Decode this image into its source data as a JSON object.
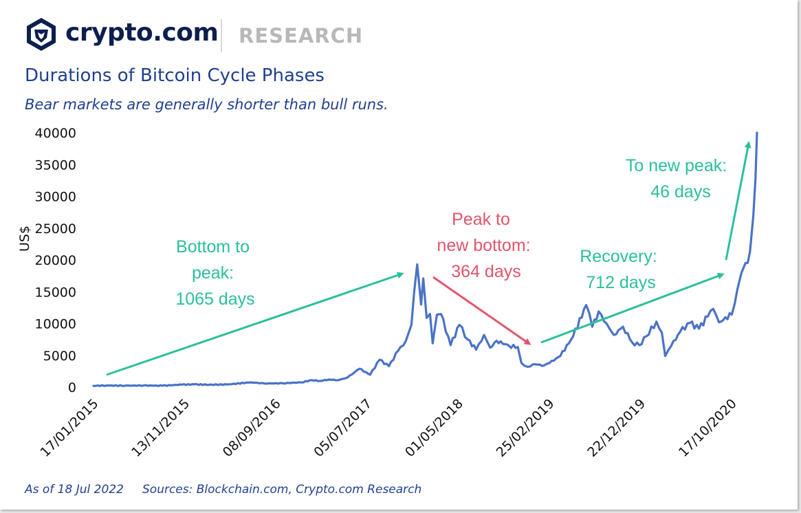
{
  "brand": {
    "name": "crypto.com",
    "section": "RESEARCH",
    "logo_icon": "crypto-com-lion-shield-icon",
    "color": "#0d1f4f"
  },
  "footer": {
    "as_of": "As of 18 Jul 2022",
    "sources": "Sources: Blockchain.com, Crypto.com Research"
  },
  "chart_data": {
    "type": "line",
    "title": "Durations of Bitcoin Cycle Phases",
    "subtitle": "Bear markets are generally shorter than bull runs.",
    "xlabel": "",
    "ylabel": "US$",
    "ylim": [
      0,
      40000
    ],
    "yticks": [
      0,
      5000,
      10000,
      15000,
      20000,
      25000,
      30000,
      35000,
      40000
    ],
    "xlim": [
      "2015-01-17",
      "2021-01-08"
    ],
    "xticks": [
      {
        "date": "2015-01-17",
        "label": "17/01/2015"
      },
      {
        "date": "2015-11-13",
        "label": "13/11/2015"
      },
      {
        "date": "2016-09-08",
        "label": "08/09/2016"
      },
      {
        "date": "2017-07-05",
        "label": "05/07/2017"
      },
      {
        "date": "2018-05-01",
        "label": "01/05/2018"
      },
      {
        "date": "2019-02-25",
        "label": "25/02/2019"
      },
      {
        "date": "2019-12-22",
        "label": "22/12/2019"
      },
      {
        "date": "2020-10-17",
        "label": "17/10/2020"
      }
    ],
    "grid": false,
    "legend": "none",
    "series": [
      {
        "color": "#4a72c6",
        "points": [
          [
            "2015-01-17",
            210
          ],
          [
            "2015-03-01",
            260
          ],
          [
            "2015-05-01",
            235
          ],
          [
            "2015-07-01",
            260
          ],
          [
            "2015-09-01",
            230
          ],
          [
            "2015-11-04",
            400
          ],
          [
            "2015-12-15",
            440
          ],
          [
            "2016-02-01",
            380
          ],
          [
            "2016-04-01",
            420
          ],
          [
            "2016-06-17",
            760
          ],
          [
            "2016-08-01",
            580
          ],
          [
            "2016-10-01",
            610
          ],
          [
            "2016-12-01",
            750
          ],
          [
            "2017-01-04",
            1100
          ],
          [
            "2017-02-01",
            980
          ],
          [
            "2017-03-01",
            1200
          ],
          [
            "2017-04-01",
            1100
          ],
          [
            "2017-05-01",
            1500
          ],
          [
            "2017-06-10",
            2900
          ],
          [
            "2017-07-15",
            1950
          ],
          [
            "2017-08-15",
            4300
          ],
          [
            "2017-09-15",
            3300
          ],
          [
            "2017-10-15",
            5700
          ],
          [
            "2017-11-10",
            7300
          ],
          [
            "2017-11-28",
            9800
          ],
          [
            "2017-12-07",
            15000
          ],
          [
            "2017-12-17",
            19300
          ],
          [
            "2017-12-30",
            13000
          ],
          [
            "2018-01-06",
            17100
          ],
          [
            "2018-01-17",
            10900
          ],
          [
            "2018-01-28",
            11500
          ],
          [
            "2018-02-06",
            6900
          ],
          [
            "2018-02-20",
            11400
          ],
          [
            "2018-03-05",
            11500
          ],
          [
            "2018-04-06",
            6600
          ],
          [
            "2018-05-05",
            9800
          ],
          [
            "2018-06-01",
            7500
          ],
          [
            "2018-06-29",
            5900
          ],
          [
            "2018-07-25",
            8200
          ],
          [
            "2018-08-14",
            6200
          ],
          [
            "2018-09-04",
            7300
          ],
          [
            "2018-10-15",
            6500
          ],
          [
            "2018-11-13",
            6300
          ],
          [
            "2018-11-25",
            3800
          ],
          [
            "2018-12-15",
            3200
          ],
          [
            "2019-01-10",
            3600
          ],
          [
            "2019-02-07",
            3400
          ],
          [
            "2019-02-25",
            3800
          ],
          [
            "2019-04-02",
            4900
          ],
          [
            "2019-05-14",
            8000
          ],
          [
            "2019-06-26",
            12900
          ],
          [
            "2019-07-16",
            9500
          ],
          [
            "2019-08-06",
            11900
          ],
          [
            "2019-09-01",
            10000
          ],
          [
            "2019-09-25",
            8200
          ],
          [
            "2019-10-25",
            9500
          ],
          [
            "2019-11-25",
            7000
          ],
          [
            "2019-12-18",
            6600
          ],
          [
            "2020-01-10",
            8000
          ],
          [
            "2020-02-12",
            10300
          ],
          [
            "2020-03-01",
            8600
          ],
          [
            "2020-03-12",
            4900
          ],
          [
            "2020-04-01",
            6500
          ],
          [
            "2020-04-30",
            8700
          ],
          [
            "2020-06-01",
            10100
          ],
          [
            "2020-07-01",
            9200
          ],
          [
            "2020-07-30",
            11100
          ],
          [
            "2020-08-17",
            12300
          ],
          [
            "2020-09-05",
            10200
          ],
          [
            "2020-10-17",
            11400
          ],
          [
            "2020-11-05",
            15500
          ],
          [
            "2020-11-18",
            18000
          ],
          [
            "2020-12-01",
            19500
          ],
          [
            "2020-12-16",
            21300
          ],
          [
            "2020-12-27",
            27000
          ],
          [
            "2021-01-03",
            32800
          ],
          [
            "2021-01-08",
            40000
          ]
        ]
      }
    ],
    "annotations": [
      {
        "id": "bottom-to-peak",
        "lines": [
          "Bottom to",
          "peak:",
          "1065 days"
        ],
        "color": "#2bbf9c"
      },
      {
        "id": "peak-to-bottom",
        "lines": [
          "Peak to",
          "new bottom:",
          "364 days"
        ],
        "color": "#e2546b"
      },
      {
        "id": "recovery",
        "lines": [
          "Recovery:",
          "712 days"
        ],
        "color": "#2bbf9c"
      },
      {
        "id": "to-new-peak",
        "lines": [
          "To new peak:",
          "46 days"
        ],
        "color": "#2bbf9c"
      }
    ]
  }
}
